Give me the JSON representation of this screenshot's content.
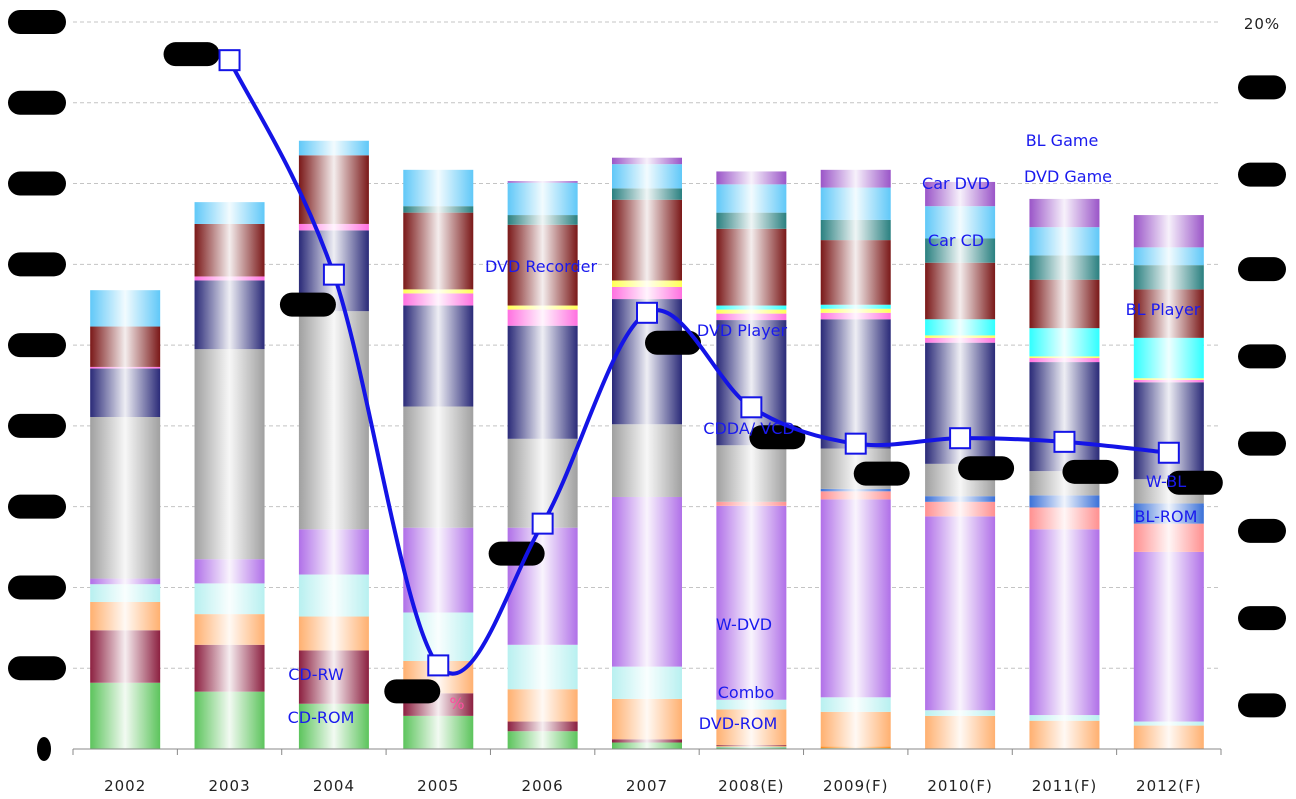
{
  "chart_data": {
    "type": "bar",
    "stacked": true,
    "secondary_line": true,
    "categories": [
      "2002",
      "2003",
      "2004",
      "2005",
      "2006",
      "2007",
      "2008(E)",
      "2009(F)",
      "2010(F)",
      "2011(F)",
      "2012(F)"
    ],
    "ylim_left": [
      0,
      9
    ],
    "ylim_right_percent": [
      -20,
      20
    ],
    "right_axis_top_label": "20%",
    "grid": "horizontal dashed",
    "series": [
      {
        "name": "CD-ROM",
        "color": "#5cc45c",
        "values": [
          0.82,
          0.71,
          0.56,
          0.41,
          0.22,
          0.08,
          0.02,
          0.01,
          0.0,
          0.0,
          0.0
        ]
      },
      {
        "name": "Combo",
        "color": "#a8c8f0",
        "values": [
          0.0,
          0.0,
          0.0,
          0.0,
          0.0,
          0.0,
          0.01,
          0.0,
          0.0,
          0.0,
          0.0
        ]
      },
      {
        "name": "DVD-ROM",
        "color": "#ff8c1a",
        "values": [
          0.0,
          0.0,
          0.0,
          0.0,
          0.0,
          0.0,
          0.01,
          0.02,
          0.01,
          0.0,
          0.0
        ]
      },
      {
        "name": "CD-RW",
        "color": "#8c2040",
        "values": [
          0.65,
          0.58,
          0.66,
          0.28,
          0.12,
          0.04,
          0.01,
          0.0,
          0.0,
          0.0,
          0.0
        ]
      },
      {
        "name": "",
        "color": "#ffb070",
        "values": [
          0.35,
          0.38,
          0.42,
          0.4,
          0.4,
          0.5,
          0.44,
          0.43,
          0.4,
          0.35,
          0.29
        ]
      },
      {
        "name": "",
        "color": "#b8f0f0",
        "values": [
          0.22,
          0.38,
          0.52,
          0.6,
          0.55,
          0.4,
          0.12,
          0.18,
          0.07,
          0.07,
          0.05
        ]
      },
      {
        "name": "W-DVD",
        "color": "#b070e8",
        "values": [
          0.07,
          0.3,
          0.56,
          1.05,
          1.45,
          2.1,
          2.4,
          2.45,
          2.4,
          2.3,
          2.1
        ]
      },
      {
        "name": "BL-ROM",
        "color": "#ff9090",
        "values": [
          0.0,
          0.0,
          0.0,
          0.0,
          0.0,
          0.0,
          0.05,
          0.1,
          0.18,
          0.27,
          0.35
        ]
      },
      {
        "name": "W-BL",
        "color": "#3a70d8",
        "values": [
          0.0,
          0.0,
          0.0,
          0.0,
          0.0,
          0.0,
          0.0,
          0.03,
          0.07,
          0.15,
          0.25
        ]
      },
      {
        "name": "CDDA/ VCD",
        "color": "#a0a0a0",
        "values": [
          2.0,
          2.6,
          2.7,
          1.5,
          1.1,
          0.9,
          0.7,
          0.5,
          0.4,
          0.3,
          0.3
        ]
      },
      {
        "name": "DVD Player",
        "color": "#2a2a78",
        "values": [
          0.6,
          0.85,
          1.0,
          1.25,
          1.4,
          1.55,
          1.55,
          1.6,
          1.5,
          1.35,
          1.2
        ]
      },
      {
        "name": "DVD Recorder",
        "color": "#ff70e0",
        "values": [
          0.02,
          0.05,
          0.08,
          0.15,
          0.2,
          0.15,
          0.08,
          0.08,
          0.06,
          0.05,
          0.03
        ]
      },
      {
        "name": "",
        "color": "#ffff55",
        "values": [
          0.0,
          0.0,
          0.0,
          0.05,
          0.05,
          0.08,
          0.05,
          0.05,
          0.03,
          0.02,
          0.02
        ]
      },
      {
        "name": "BL Player",
        "color": "#30ffff",
        "values": [
          0.0,
          0.0,
          0.0,
          0.0,
          0.0,
          0.0,
          0.05,
          0.05,
          0.2,
          0.35,
          0.5
        ]
      },
      {
        "name": "Car CD",
        "color": "#7a1818",
        "values": [
          0.5,
          0.65,
          0.85,
          0.95,
          1.0,
          1.0,
          0.95,
          0.8,
          0.7,
          0.6,
          0.6
        ]
      },
      {
        "name": "Car DVD",
        "color": "#2a8080",
        "values": [
          0.0,
          0.0,
          0.0,
          0.08,
          0.12,
          0.14,
          0.2,
          0.25,
          0.3,
          0.3,
          0.3
        ]
      },
      {
        "name": "DVD Game",
        "color": "#60c8f8",
        "values": [
          0.45,
          0.27,
          0.18,
          0.45,
          0.4,
          0.3,
          0.35,
          0.4,
          0.4,
          0.35,
          0.22
        ]
      },
      {
        "name": "BL Game",
        "color": "#9a55c8",
        "values": [
          0.0,
          0.0,
          0.0,
          0.0,
          0.02,
          0.08,
          0.16,
          0.22,
          0.3,
          0.35,
          0.4
        ]
      }
    ],
    "growth_line": {
      "name": "",
      "color": "#1414e6",
      "values_percent": [
        null,
        17.9,
        6.1,
        -15.4,
        -7.6,
        4.0,
        -1.2,
        -3.2,
        -2.9,
        -3.1,
        -3.7
      ]
    },
    "visible_labels": [
      {
        "text": "DVD Recorder",
        "series": "DVD Recorder"
      },
      {
        "text": "DVD Player",
        "series": "DVD Player"
      },
      {
        "text": "CDDA/ VCD",
        "series": "CDDA/ VCD"
      },
      {
        "text": "W-DVD",
        "series": "W-DVD"
      },
      {
        "text": "Combo",
        "series": "Combo"
      },
      {
        "text": "DVD-ROM",
        "series": "DVD-ROM"
      },
      {
        "text": "CD-RW",
        "series": "CD-RW"
      },
      {
        "text": "CD-ROM",
        "series": "CD-ROM"
      },
      {
        "text": "Car DVD",
        "series": "Car DVD"
      },
      {
        "text": "Car CD",
        "series": "Car CD"
      },
      {
        "text": "BL Game",
        "series": "BL Game"
      },
      {
        "text": "DVD Game",
        "series": "DVD Game"
      },
      {
        "text": "BL Player",
        "series": "BL Player"
      },
      {
        "text": "W-BL",
        "series": "W-BL"
      },
      {
        "text": "BL-ROM",
        "series": "BL-ROM"
      }
    ],
    "partial_text": "%"
  }
}
